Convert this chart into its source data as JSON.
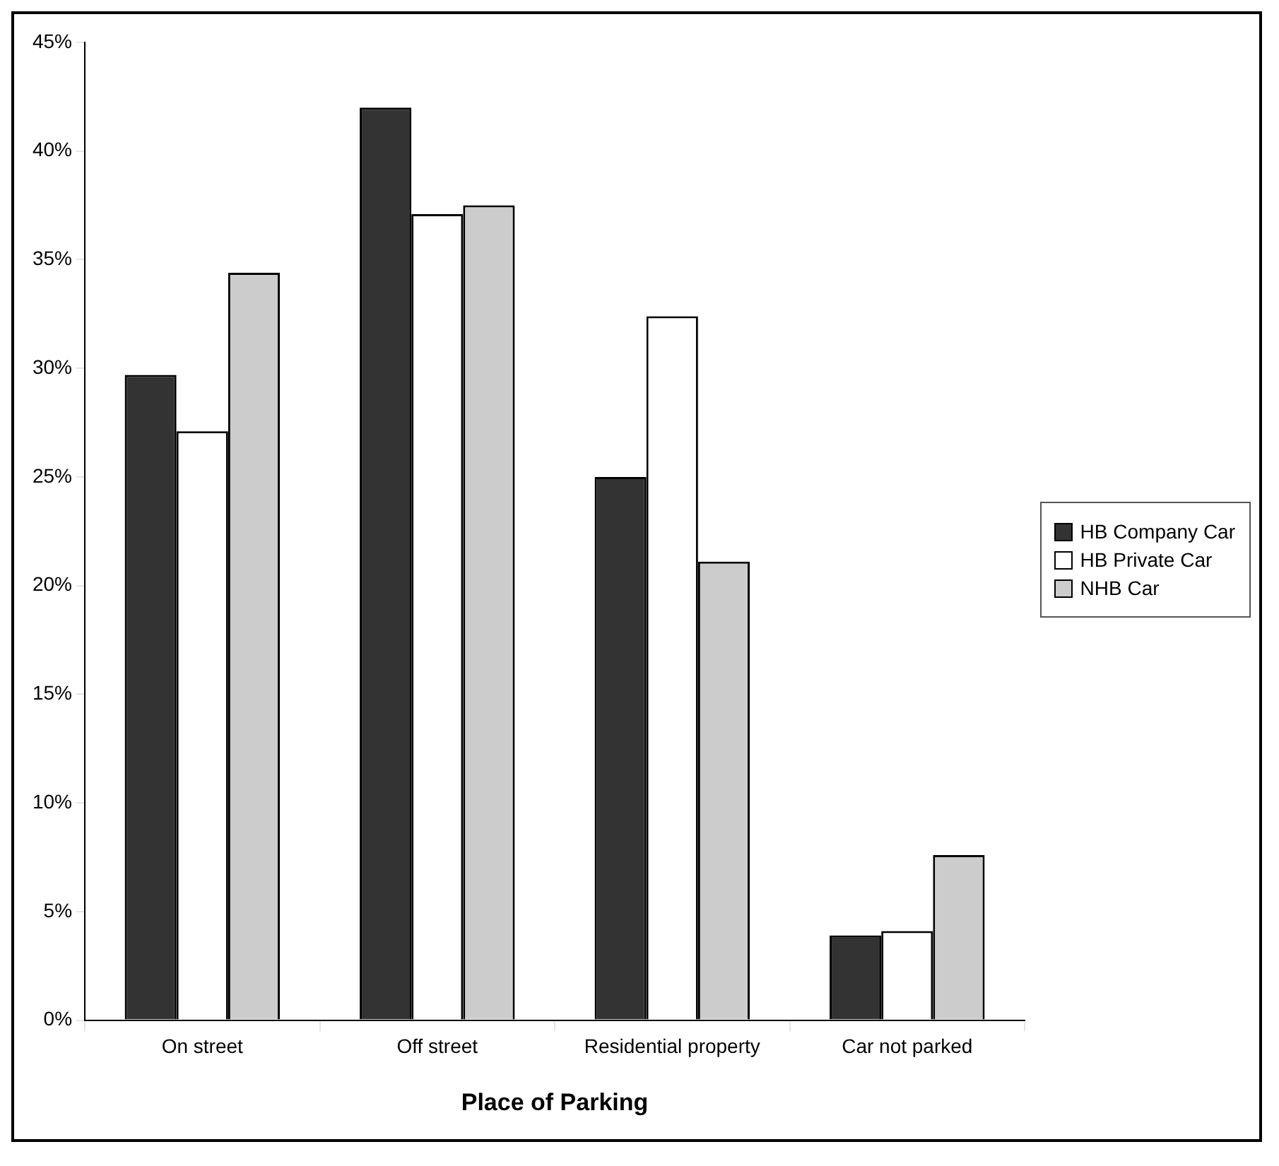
{
  "chart_data": {
    "type": "bar",
    "xlabel": "Place of Parking",
    "categories": [
      "On street",
      "Off street",
      "Residential property",
      "Car not parked"
    ],
    "series": [
      {
        "name": "HB Company Car",
        "color": "#333333",
        "values": [
          29.7,
          42,
          25,
          3.9
        ]
      },
      {
        "name": "HB Private Car",
        "color": "#ffffff",
        "values": [
          27.1,
          37.1,
          32.4,
          4.1
        ]
      },
      {
        "name": "NHB Car",
        "color": "#cccccc",
        "values": [
          34.4,
          37.5,
          21.1,
          7.6
        ]
      }
    ],
    "ylim": [
      0,
      45
    ],
    "yticks": [
      {
        "value": 0,
        "label": "0%"
      },
      {
        "value": 5,
        "label": "5%"
      },
      {
        "value": 10,
        "label": "10%"
      },
      {
        "value": 15,
        "label": "15%"
      },
      {
        "value": 20,
        "label": "20%"
      },
      {
        "value": 25,
        "label": "25%"
      },
      {
        "value": 30,
        "label": "30%"
      },
      {
        "value": 35,
        "label": "35%"
      },
      {
        "value": 40,
        "label": "40%"
      },
      {
        "value": 45,
        "label": "45%"
      }
    ],
    "grid": false,
    "legend": "right"
  }
}
